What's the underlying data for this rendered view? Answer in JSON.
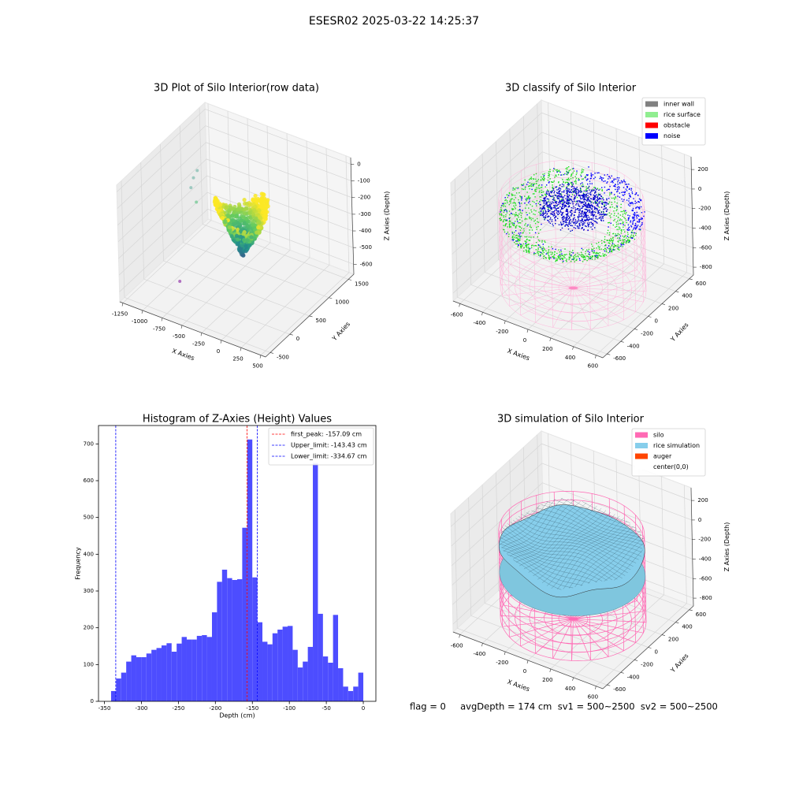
{
  "title": "ESESR02 2025-03-22 14:25:37",
  "footer": "flag = 0     avgDepth = 174 cm  sv1 = 500~2500  sv2 = 500~2500",
  "chart_data": [
    {
      "type": "scatter3d",
      "title": "3D Plot of Silo Interior(row data)",
      "xlabel": "X Axies",
      "ylabel": "Y Axies",
      "zlabel": "Z Axies (Depth)",
      "xlim": [
        -1290,
        560
      ],
      "xticks": [
        -1250,
        -1000,
        -750,
        -500,
        -250,
        0,
        250,
        500
      ],
      "ylim": [
        -620,
        1640
      ],
      "yticks": [
        -500,
        0,
        500,
        1000,
        1500
      ],
      "zlim": [
        -660,
        40
      ],
      "zticks": [
        0,
        -100,
        -200,
        -300,
        -400,
        -500,
        -600
      ]
    },
    {
      "type": "scatter3d",
      "title": "3D classify of Silo Interior",
      "xlabel": "X Axies",
      "ylabel": "Y Axies",
      "zlabel": "Z Axies (Depth)",
      "xlim": [
        -660,
        660
      ],
      "xticks": [
        -600,
        -400,
        -200,
        0,
        200,
        400,
        600
      ],
      "ylim": [
        -660,
        660
      ],
      "yticks": [
        -600,
        -400,
        -200,
        0,
        200,
        400,
        600
      ],
      "zlim": [
        -880,
        330
      ],
      "zticks": [
        200,
        0,
        -200,
        -400,
        -600,
        -800
      ],
      "legend": [
        {
          "name": "inner wall",
          "color": "#808080"
        },
        {
          "name": "rice surface",
          "color": "#90ee90"
        },
        {
          "name": "obstacle",
          "color": "#ff0000"
        },
        {
          "name": "noise",
          "color": "#0000ff"
        }
      ]
    },
    {
      "type": "histogram",
      "title": "Histogram of Z-Axies (Height) Values",
      "xlabel": "Depth (cm)",
      "ylabel": "Frequency",
      "color": "#4d4dff",
      "bins": [
        -341,
        -334.18,
        -327.36,
        -320.54,
        -313.72,
        -306.9,
        -300.08,
        -293.26,
        -286.44,
        -279.62,
        -272.8,
        -265.98,
        -259.16,
        -252.34,
        -245.52,
        -238.7,
        -231.88,
        -225.06,
        -218.24,
        -211.42,
        -204.6,
        -197.78,
        -190.96,
        -184.14,
        -177.32,
        -170.5,
        -163.68,
        -156.86,
        -150.04,
        -143.22,
        -136.4,
        -129.58,
        -122.76,
        -115.94,
        -109.12,
        -102.3,
        -95.48,
        -88.66,
        -81.84,
        -75.02,
        -68.2,
        -61.38,
        -54.56,
        -47.74,
        -40.92,
        -34.1,
        -27.28,
        -20.46,
        -13.64,
        -6.82,
        0
      ],
      "values": [
        28,
        62,
        78,
        108,
        125,
        120,
        120,
        130,
        140,
        145,
        152,
        158,
        135,
        157,
        175,
        168,
        168,
        178,
        180,
        175,
        242,
        325,
        358,
        335,
        330,
        332,
        472,
        712,
        337,
        215,
        162,
        155,
        185,
        195,
        203,
        205,
        140,
        92,
        108,
        148,
        648,
        238,
        122,
        105,
        235,
        90,
        40,
        28,
        40,
        78
      ],
      "xlim": [
        -358,
        17
      ],
      "xticks": [
        -350,
        -300,
        -250,
        -200,
        -150,
        -100,
        -50,
        0
      ],
      "ylim": [
        0,
        750
      ],
      "yticks": [
        0,
        100,
        200,
        300,
        400,
        500,
        600,
        700
      ],
      "lines": [
        {
          "name": "first_peak: -157.09 cm",
          "value": -157.09,
          "color": "#ff0000"
        },
        {
          "name": "Upper_limit: -143.43 cm",
          "value": -143.43,
          "color": "#0000ff"
        },
        {
          "name": "Lower_limit: -334.67 cm",
          "value": -334.67,
          "color": "#0000ff"
        }
      ]
    },
    {
      "type": "surface3d",
      "title": "3D simulation of Silo Interior",
      "xlabel": "X Axies",
      "ylabel": "Y Axies",
      "zlabel": "Z Axies (Depth)",
      "xlim": [
        -660,
        660
      ],
      "xticks": [
        -600,
        -400,
        -200,
        0,
        200,
        400,
        600
      ],
      "ylim": [
        -660,
        660
      ],
      "yticks": [
        -600,
        -400,
        -200,
        0,
        200,
        400,
        600
      ],
      "zlim": [
        -880,
        330
      ],
      "zticks": [
        200,
        0,
        -200,
        -400,
        -600,
        -800
      ],
      "legend": [
        {
          "name": "silo",
          "color": "#ff69b4"
        },
        {
          "name": "rice simulation",
          "color": "#87ceeb"
        },
        {
          "name": "auger",
          "color": "#ff4500"
        },
        {
          "name": "center(0,0)",
          "color": "#ffffff"
        }
      ]
    }
  ]
}
